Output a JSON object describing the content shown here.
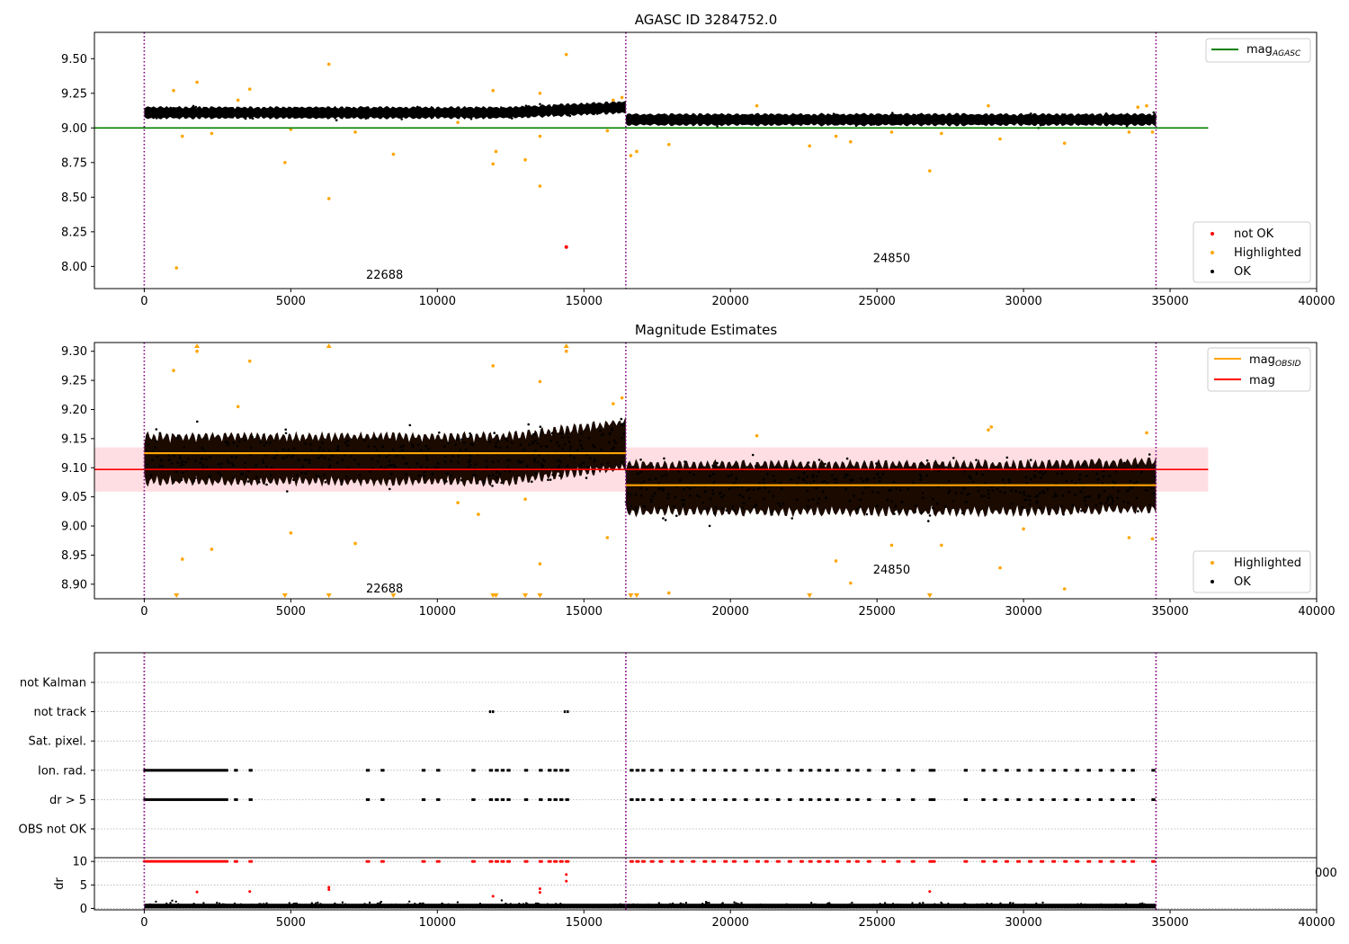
{
  "chart_data": [
    {
      "type": "scatter",
      "title": "AGASC ID 3284752.0",
      "xlim": [
        -1700,
        40000
      ],
      "ylim": [
        7.84,
        9.69
      ],
      "xticks": [
        0,
        5000,
        10000,
        15000,
        20000,
        25000,
        30000,
        35000,
        40000
      ],
      "xtick_labels": [
        "0",
        "5000",
        "10000",
        "15000",
        "20000",
        "25000",
        "30000",
        "35000",
        "40000"
      ],
      "yticks": [
        8.0,
        8.25,
        8.5,
        8.75,
        9.0,
        9.25,
        9.5
      ],
      "ytick_labels": [
        "8.00",
        "8.25",
        "8.50",
        "8.75",
        "9.00",
        "9.25",
        "9.50"
      ],
      "obsid_boundaries": [
        0,
        16430,
        34520
      ],
      "obsid_labels": [
        {
          "text": "22688",
          "x": 8200,
          "y": 7.91
        },
        {
          "text": "24850",
          "x": 25500,
          "y": 8.03
        }
      ],
      "reference_line": {
        "name": "mag_AGASC",
        "value": 9.0,
        "x_range": [
          -1700,
          36300
        ],
        "color": "#008000"
      },
      "ok_bands": [
        {
          "x_range": [
            0,
            16430
          ],
          "center": 9.11,
          "center_end": 9.15,
          "spread": 0.08
        },
        {
          "x_range": [
            16430,
            34520
          ],
          "center": 9.06,
          "center_end": 9.06,
          "spread": 0.08
        }
      ],
      "highlighted_points": [
        [
          1000,
          9.27
        ],
        [
          1800,
          9.33
        ],
        [
          3200,
          9.2
        ],
        [
          3600,
          9.28
        ],
        [
          6300,
          9.46
        ],
        [
          11900,
          9.27
        ],
        [
          13500,
          9.25
        ],
        [
          14400,
          9.53
        ],
        [
          16000,
          9.2
        ],
        [
          16300,
          9.22
        ],
        [
          1100,
          7.99
        ],
        [
          1300,
          8.94
        ],
        [
          2300,
          8.96
        ],
        [
          4800,
          8.75
        ],
        [
          5000,
          8.99
        ],
        [
          6300,
          8.49
        ],
        [
          7200,
          8.97
        ],
        [
          8500,
          8.81
        ],
        [
          10700,
          9.04
        ],
        [
          11900,
          8.74
        ],
        [
          12000,
          8.83
        ],
        [
          13000,
          8.77
        ],
        [
          13500,
          8.94
        ],
        [
          13500,
          8.58
        ],
        [
          15800,
          8.98
        ],
        [
          16600,
          8.8
        ],
        [
          16800,
          8.83
        ],
        [
          17900,
          8.88
        ],
        [
          20900,
          9.16
        ],
        [
          22700,
          8.87
        ],
        [
          23600,
          8.94
        ],
        [
          24100,
          8.9
        ],
        [
          25500,
          8.97
        ],
        [
          26800,
          8.69
        ],
        [
          27200,
          8.96
        ],
        [
          28800,
          9.16
        ],
        [
          29200,
          8.92
        ],
        [
          31400,
          8.89
        ],
        [
          33600,
          8.97
        ],
        [
          34400,
          8.97
        ],
        [
          34200,
          9.16
        ],
        [
          33900,
          9.15
        ]
      ],
      "not_ok_points": [
        [
          14400,
          8.14
        ]
      ],
      "legends": [
        {
          "position": "top-right",
          "entries": [
            {
              "label": "mag",
              "sub": "AGASC",
              "color": "#008000",
              "marker": "line"
            }
          ]
        },
        {
          "position": "bottom-right",
          "entries": [
            {
              "label": "not OK",
              "color": "#ff0000",
              "marker": "dot"
            },
            {
              "label": "Highlighted",
              "color": "#ffa500",
              "marker": "dot"
            },
            {
              "label": "OK",
              "color": "#000000",
              "marker": "dot"
            }
          ]
        }
      ]
    },
    {
      "type": "scatter",
      "title": "Magnitude Estimates",
      "xlim": [
        -1700,
        40000
      ],
      "ylim": [
        8.875,
        9.315
      ],
      "xticks": [
        0,
        5000,
        10000,
        15000,
        20000,
        25000,
        30000,
        35000,
        40000
      ],
      "xtick_labels": [
        "0",
        "5000",
        "10000",
        "15000",
        "20000",
        "25000",
        "30000",
        "35000",
        "40000"
      ],
      "yticks": [
        8.9,
        8.95,
        9.0,
        9.05,
        9.1,
        9.15,
        9.2,
        9.25,
        9.3
      ],
      "ytick_labels": [
        "8.90",
        "8.95",
        "9.00",
        "9.05",
        "9.10",
        "9.15",
        "9.20",
        "9.25",
        "9.30"
      ],
      "obsid_boundaries": [
        0,
        16430,
        34520
      ],
      "obsid_labels": [
        {
          "text": "22688",
          "x": 8200,
          "y": 8.886
        },
        {
          "text": "24850",
          "x": 25500,
          "y": 8.918
        }
      ],
      "mag_line": {
        "name": "mag",
        "value": 9.097,
        "x_range": [
          -1700,
          36300
        ],
        "color": "#ff0000"
      },
      "mag_band": {
        "low": 9.059,
        "high": 9.135,
        "x_range": [
          -1700,
          36300
        ],
        "color": "#ffb6c1"
      },
      "mag_obsid": [
        {
          "x_range": [
            0,
            16430
          ],
          "value": 9.125
        },
        {
          "x_range": [
            16430,
            34520
          ],
          "value": 9.07
        }
      ],
      "ok_bands": [
        {
          "x_range": [
            0,
            16430
          ],
          "center": 9.115,
          "center_end": 9.14,
          "spread": 0.085
        },
        {
          "x_range": [
            16430,
            34520
          ],
          "center": 9.065,
          "center_end": 9.07,
          "spread": 0.09
        }
      ],
      "highlighted_points": [
        [
          1000,
          9.267
        ],
        [
          1800,
          9.3
        ],
        [
          3200,
          9.205
        ],
        [
          3600,
          9.283
        ],
        [
          11900,
          9.275
        ],
        [
          13500,
          9.248
        ],
        [
          14400,
          9.3
        ],
        [
          16000,
          9.21
        ],
        [
          16300,
          9.22
        ],
        [
          1300,
          8.943
        ],
        [
          2300,
          8.96
        ],
        [
          5000,
          8.988
        ],
        [
          7200,
          8.97
        ],
        [
          10700,
          9.04
        ],
        [
          11400,
          9.02
        ],
        [
          13000,
          9.046
        ],
        [
          13500,
          8.935
        ],
        [
          15800,
          8.98
        ],
        [
          17900,
          8.885
        ],
        [
          20900,
          9.155
        ],
        [
          23600,
          8.94
        ],
        [
          24100,
          8.902
        ],
        [
          25500,
          8.967
        ],
        [
          27200,
          8.967
        ],
        [
          28800,
          9.165
        ],
        [
          29200,
          8.928
        ],
        [
          31400,
          8.892
        ],
        [
          33600,
          8.98
        ],
        [
          34400,
          8.978
        ],
        [
          34200,
          9.16
        ],
        [
          30000,
          8.995
        ],
        [
          28900,
          9.17
        ]
      ],
      "clipped_top": [
        1800,
        6300,
        14400
      ],
      "clipped_bottom": [
        1100,
        4800,
        6300,
        8500,
        11900,
        12000,
        13000,
        13500,
        16600,
        16800,
        22700,
        26800
      ],
      "legends": [
        {
          "position": "top-right",
          "entries": [
            {
              "label": "mag",
              "sub": "OBSID",
              "color": "#ffa500",
              "marker": "line"
            },
            {
              "label": "mag",
              "sub": "",
              "color": "#ff0000",
              "marker": "line"
            }
          ]
        },
        {
          "position": "bottom-right",
          "entries": [
            {
              "label": "Highlighted",
              "color": "#ffa500",
              "marker": "dot"
            },
            {
              "label": "OK",
              "color": "#000000",
              "marker": "dot"
            }
          ]
        }
      ]
    },
    {
      "type": "scatter",
      "title": "",
      "xlim": [
        -1700,
        40000
      ],
      "obsid_boundaries": [
        0,
        16430,
        34520
      ],
      "flag_rows": [
        "not Kalman",
        "not track",
        "Sat. pixel.",
        "Ion. rad.",
        "dr > 5",
        "OBS not OK"
      ],
      "flag_events": {
        "not track": [
          11800,
          11900,
          14350,
          14450
        ],
        "flagged_times": [
          3100,
          3600,
          7600,
          8100,
          9500,
          10000,
          11200,
          11800,
          12000,
          12200,
          12400,
          13000,
          13500,
          13800,
          14000,
          14200,
          14400,
          16600,
          16800,
          17000,
          17300,
          17600,
          18000,
          18300,
          18700,
          19100,
          19400,
          19800,
          20100,
          20500,
          20900,
          21200,
          21600,
          22000,
          22400,
          22700,
          23000,
          23300,
          23600,
          24000,
          24300,
          24700,
          25200,
          25700,
          26200,
          26800,
          26900,
          28000,
          28600,
          29000,
          29400,
          29800,
          30200,
          30600,
          31000,
          31400,
          31800,
          32200,
          32600,
          33000,
          33400,
          33700,
          34400
        ],
        "dense_range": [
          0,
          2850
        ]
      },
      "dr": {
        "ylabel": "dr",
        "ylim": [
          -0.3,
          10.8
        ],
        "yticks": [
          0,
          5,
          10
        ],
        "ytick_labels": [
          "0",
          "5",
          "10"
        ],
        "xticks": [
          0,
          5000,
          10000,
          15000,
          20000,
          25000,
          30000,
          35000,
          40000
        ],
        "xtick_labels": [
          "0",
          "5000",
          "10000",
          "15000",
          "20000",
          "25000",
          "30000",
          "35000",
          "40000"
        ],
        "outliers": [
          [
            1800,
            3.5
          ],
          [
            3600,
            3.6
          ],
          [
            6300,
            4.5
          ],
          [
            6300,
            4.0
          ],
          [
            11900,
            2.6
          ],
          [
            13500,
            4.2
          ],
          [
            13500,
            3.4
          ],
          [
            14400,
            5.8
          ],
          [
            14400,
            7.2
          ],
          [
            26800,
            3.6
          ]
        ],
        "clip_value": 10,
        "overlap_tick_label": "000"
      }
    }
  ]
}
